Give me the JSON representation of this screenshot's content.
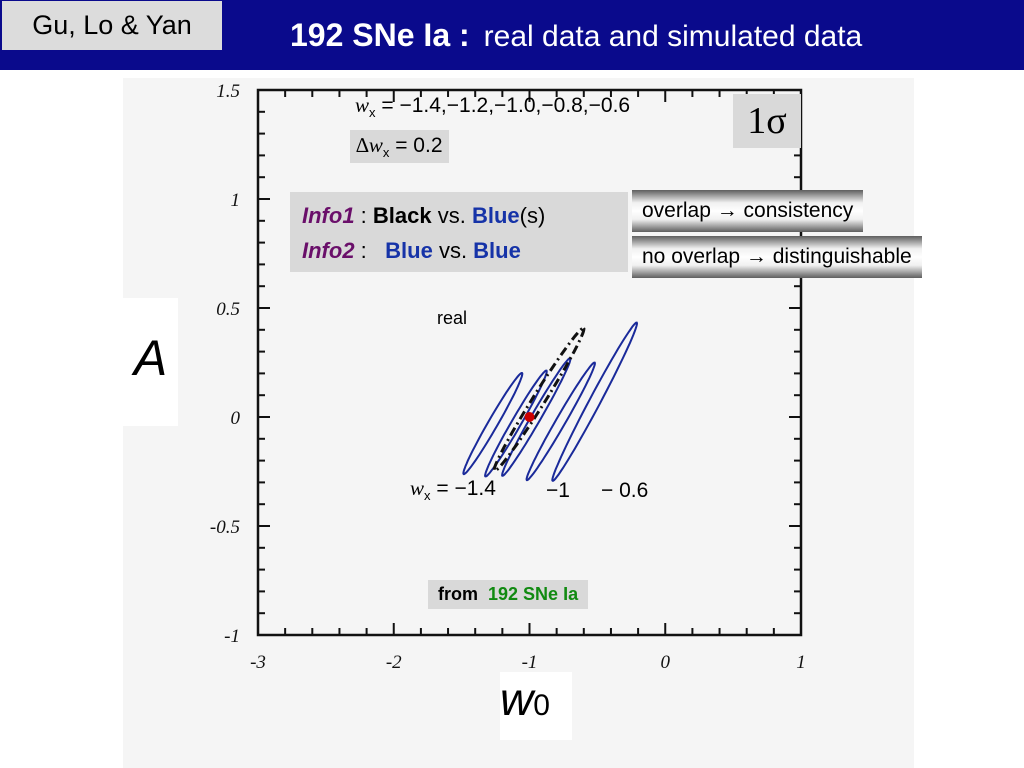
{
  "header": {
    "author": "Gu, Lo & Yan",
    "title_strong": "192 SNe Ia :",
    "title_light": "real data and simulated data"
  },
  "annotations": {
    "wx_label": "w",
    "wx_sub": "x",
    "wx_values": "= −1.4,−1.2,−1.0,−0.8,−0.6",
    "dwx_prefix": "∆w",
    "dwx_sub": "x",
    "dwx_value": "= 0.2",
    "sigma": "1σ",
    "info1_label": "Info1",
    "info1_sep": " : ",
    "info1_a": "Black",
    "info1_vs": " vs. ",
    "info1_b": "Blue",
    "info1_b_suffix": "(s)",
    "info2_label": "Info2",
    "info2_sep": " : ",
    "info2_a": "Blue",
    "info2_vs": " vs. ",
    "info2_b": "Blue",
    "note_overlap": "overlap → consistency",
    "note_nooverlap": "no overlap → distinguishable",
    "from_label": "from",
    "from_value": "192 SNe Ia",
    "real_label": "real",
    "wx_bottom_label": "w",
    "wx_bottom_sub": "x",
    "wx_bottom_value": "= −1.4",
    "wx_bottom_mid": "−1",
    "wx_bottom_right": "− 0.6"
  },
  "axes": {
    "ylabel": "A",
    "xlabel": "w",
    "xlabel_sub": "0"
  },
  "colors": {
    "header_bg": "#0a0a8c",
    "contour_blue": "#1a2a9a",
    "real_contour": "#111111",
    "fiducial_point": "#cc0000",
    "info_purple": "#6a0f6a",
    "from_green": "#118a11"
  },
  "chart_data": {
    "type": "scatter",
    "title": "",
    "xlabel": "w0",
    "ylabel": "A",
    "xlim": [
      -3,
      1
    ],
    "ylim": [
      -1,
      1.5
    ],
    "xticks": [
      -3,
      -2,
      -1,
      0,
      1
    ],
    "yticks": [
      -1,
      -0.5,
      0,
      0.5,
      1,
      1.5
    ],
    "xtick_labels": [
      "-3",
      "-2",
      "-1",
      "0",
      "1"
    ],
    "ytick_labels": [
      "-1",
      "-0.5",
      "0",
      "0.5",
      "1",
      "1.5"
    ],
    "fiducial_point": {
      "x": -1.0,
      "y": 0.0
    },
    "contours_1sigma": [
      {
        "wx": -1.4,
        "kind": "simulated",
        "center": [
          -1.27,
          -0.03
        ],
        "semi_major": 0.43,
        "semi_minor": 0.035,
        "angle_deg": -60
      },
      {
        "wx": -1.2,
        "kind": "simulated",
        "center": [
          -1.1,
          -0.03
        ],
        "semi_major": 0.45,
        "semi_minor": 0.035,
        "angle_deg": -60
      },
      {
        "wx": -1.0,
        "kind": "simulated",
        "center": [
          -0.95,
          0.0
        ],
        "semi_major": 0.5,
        "semi_minor": 0.035,
        "angle_deg": -60
      },
      {
        "wx": -0.8,
        "kind": "simulated",
        "center": [
          -0.77,
          -0.02
        ],
        "semi_major": 0.5,
        "semi_minor": 0.035,
        "angle_deg": -60
      },
      {
        "wx": -0.6,
        "kind": "simulated",
        "center": [
          -0.52,
          0.07
        ],
        "semi_major": 0.66,
        "semi_minor": 0.04,
        "angle_deg": -62
      },
      {
        "kind": "real",
        "center": [
          -0.93,
          0.08
        ],
        "semi_major": 0.62,
        "semi_minor": 0.045,
        "angle_deg": -58
      }
    ]
  }
}
